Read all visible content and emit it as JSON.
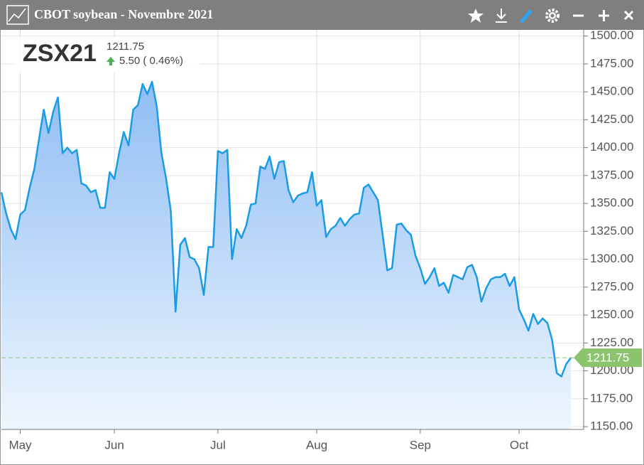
{
  "header": {
    "title": "CBOT soybean - Novembre 2021",
    "symbol": "ZSX21",
    "price": "1211.75",
    "change": "5.50 ( 0.46%)"
  },
  "chart_data": {
    "type": "area",
    "color": "#1a9be6",
    "grid": true,
    "categories": [
      null,
      null,
      null,
      null,
      "May",
      null,
      null,
      null,
      null,
      null,
      null,
      null,
      null,
      null,
      null,
      null,
      null,
      null,
      null,
      null,
      null,
      null,
      null,
      null,
      "Jun",
      null,
      null,
      null,
      null,
      null,
      null,
      null,
      null,
      null,
      null,
      null,
      null,
      null,
      null,
      null,
      null,
      null,
      null,
      null,
      null,
      null,
      "Jul",
      null,
      null,
      null,
      null,
      null,
      null,
      null,
      null,
      null,
      null,
      null,
      null,
      null,
      null,
      null,
      null,
      null,
      null,
      null,
      null,
      "Aug",
      null,
      null,
      null,
      null,
      null,
      null,
      null,
      null,
      null,
      null,
      null,
      null,
      null,
      null,
      null,
      null,
      null,
      null,
      null,
      null,
      null,
      "Sep",
      null,
      null,
      null,
      null,
      null,
      null,
      null,
      null,
      null,
      null,
      null,
      null,
      null,
      null,
      null,
      null,
      null,
      null,
      null,
      null,
      "Oct",
      null,
      null,
      null,
      null,
      null,
      null,
      null,
      null,
      null,
      null,
      null
    ],
    "values": [
      1360,
      1341,
      1327,
      1318,
      1340,
      1344,
      1364,
      1381,
      1408,
      1434,
      1413,
      1432,
      1445,
      1395,
      1400,
      1395,
      1398,
      1368,
      1366,
      1360,
      1362,
      1346,
      1346,
      1378,
      1372,
      1395,
      1414,
      1402,
      1434,
      1438,
      1457,
      1448,
      1459,
      1437,
      1395,
      1372,
      1343,
      1253,
      1313,
      1319,
      1302,
      1300,
      1292,
      1268,
      1311,
      1311,
      1397,
      1395,
      1398,
      1300,
      1327,
      1319,
      1330,
      1349,
      1350,
      1383,
      1381,
      1392,
      1372,
      1387,
      1388,
      1362,
      1351,
      1357,
      1359,
      1360,
      1378,
      1348,
      1353,
      1320,
      1327,
      1330,
      1337,
      1330,
      1336,
      1340,
      1341,
      1364,
      1367,
      1360,
      1353,
      1322,
      1290,
      1292,
      1331,
      1332,
      1326,
      1322,
      1303,
      1292,
      1278,
      1284,
      1292,
      1276,
      1279,
      1270,
      1286,
      1284,
      1282,
      1293,
      1295,
      1284,
      1262,
      1274,
      1282,
      1284,
      1284,
      1287,
      1276,
      1284,
      1255,
      1246,
      1236,
      1251,
      1242,
      1247,
      1243,
      1228,
      1198,
      1195,
      1206,
      1211.75
    ],
    "ylim": [
      1147.5,
      1505.5
    ],
    "yticks": [
      {
        "value": 1150,
        "label": "1150.00"
      },
      {
        "value": 1175,
        "label": "1175.00"
      },
      {
        "value": 1200,
        "label": "1200.00"
      },
      {
        "value": 1225,
        "label": "1225.00"
      },
      {
        "value": 1250,
        "label": "1250.00"
      },
      {
        "value": 1275,
        "label": "1275.00"
      },
      {
        "value": 1300,
        "label": "1300.00"
      },
      {
        "value": 1325,
        "label": "1325.00"
      },
      {
        "value": 1350,
        "label": "1350.00"
      },
      {
        "value": 1375,
        "label": "1375.00"
      },
      {
        "value": 1400,
        "label": "1400.00"
      },
      {
        "value": 1425,
        "label": "1425.00"
      },
      {
        "value": 1450,
        "label": "1450.00"
      },
      {
        "value": 1475,
        "label": "1475.00"
      },
      {
        "value": 1500,
        "label": "1500.00"
      }
    ]
  }
}
